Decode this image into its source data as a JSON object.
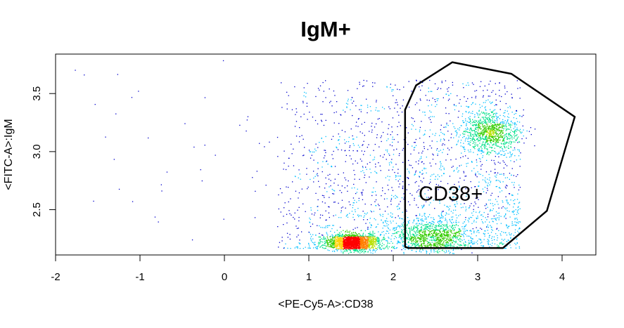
{
  "chart_data": {
    "type": "scatter",
    "style": "density-colored flow cytometry dot plot",
    "title": "IgM+",
    "xlabel": "<PE-Cy5-A>:CD38",
    "ylabel": "<FITC-A>:IgM",
    "xlim": [
      -2,
      4.4
    ],
    "ylim": [
      2.11,
      3.84
    ],
    "x_ticks": [
      -2,
      -1,
      0,
      1,
      2,
      3,
      4
    ],
    "x_tick_labels": [
      "-2",
      "-1",
      "0",
      "1",
      "2",
      "3",
      "4"
    ],
    "y_ticks": [
      2.5,
      3.0,
      3.5
    ],
    "y_tick_labels": [
      "2.5",
      "3.0",
      "3.5"
    ],
    "grid": false,
    "density_colors": [
      "#0000cc",
      "#00bfff",
      "#00e08a",
      "#33cc00",
      "#b8e000",
      "#ffd000",
      "#ff7f00",
      "#ff0000"
    ],
    "clusters": [
      {
        "name": "CD38+ IgM-high population",
        "center": [
          3.15,
          3.17
        ],
        "spread": [
          0.17,
          0.09
        ],
        "relative_density": "medium"
      },
      {
        "name": "CD38+ IgM-low population",
        "center": [
          2.45,
          2.27
        ],
        "spread": [
          0.22,
          0.08
        ],
        "relative_density": "medium"
      },
      {
        "name": "CD38-intermediate IgM-low population",
        "center": [
          1.52,
          2.22
        ],
        "spread": [
          0.15,
          0.035
        ],
        "relative_density": "high"
      }
    ],
    "gates": [
      {
        "label": "CD38+",
        "label_position": [
          2.68,
          2.58
        ],
        "line_color": "#000000",
        "vertices": [
          [
            2.14,
            2.18
          ],
          [
            2.18,
            2.17
          ],
          [
            3.3,
            2.17
          ],
          [
            3.82,
            2.49
          ],
          [
            4.15,
            3.3
          ],
          [
            3.4,
            3.67
          ],
          [
            2.7,
            3.77
          ],
          [
            2.27,
            3.57
          ],
          [
            2.14,
            3.36
          ]
        ]
      }
    ]
  }
}
